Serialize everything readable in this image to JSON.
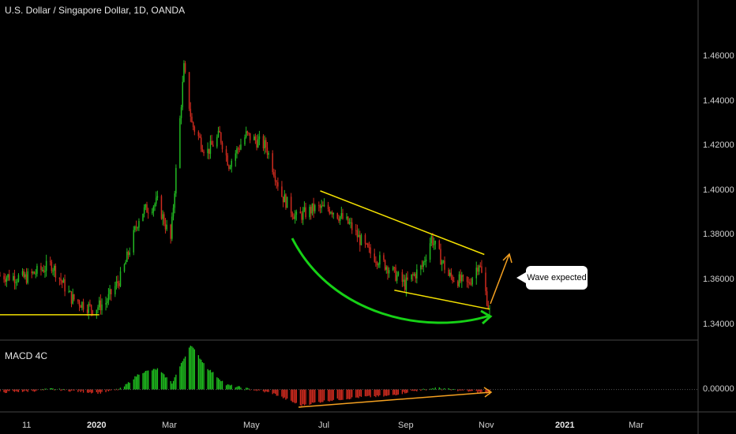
{
  "header": {
    "title": "U.S. Dollar / Singapore Dollar, 1D, OANDA"
  },
  "indicator": {
    "label": "MACD 4C"
  },
  "annotation": {
    "text": "Wave expected"
  },
  "colors": {
    "up": "#22b822",
    "down": "#cc2a1e",
    "trendline": "#f3e000",
    "arc": "#16d116",
    "arrow": "#f4a020",
    "macd_up": "#1fbf1f",
    "macd_down": "#d22b1f"
  },
  "chart_data": [
    {
      "type": "candlestick",
      "title": "U.S. Dollar / Singapore Dollar, 1D, OANDA",
      "x_ticks": [
        "11",
        "2020",
        "Mar",
        "May",
        "Jul",
        "Sep",
        "Nov",
        "2021",
        "Mar"
      ],
      "y_ticks": [
        "1.34000",
        "1.36000",
        "1.38000",
        "1.40000",
        "1.42000",
        "1.44000",
        "1.46000"
      ],
      "ylim": [
        1.3335,
        1.4855
      ],
      "grid": false,
      "close_path": [
        [
          "2019-11-01",
          1.362
        ],
        [
          "2019-11-20",
          1.361
        ],
        [
          "2019-12-10",
          1.367
        ],
        [
          "2019-12-25",
          1.352
        ],
        [
          "2020-01-10",
          1.347
        ],
        [
          "2020-01-20",
          1.35
        ],
        [
          "2020-02-01",
          1.362
        ],
        [
          "2020-02-15",
          1.39
        ],
        [
          "2020-02-28",
          1.395
        ],
        [
          "2020-03-09",
          1.378
        ],
        [
          "2020-03-19",
          1.455
        ],
        [
          "2020-03-25",
          1.43
        ],
        [
          "2020-04-05",
          1.417
        ],
        [
          "2020-04-15",
          1.425
        ],
        [
          "2020-04-22",
          1.412
        ],
        [
          "2020-05-05",
          1.425
        ],
        [
          "2020-05-20",
          1.42
        ],
        [
          "2020-06-01",
          1.398
        ],
        [
          "2020-06-12",
          1.388
        ],
        [
          "2020-06-25",
          1.392
        ],
        [
          "2020-07-08",
          1.392
        ],
        [
          "2020-07-22",
          1.385
        ],
        [
          "2020-08-05",
          1.373
        ],
        [
          "2020-08-20",
          1.366
        ],
        [
          "2020-09-02",
          1.358
        ],
        [
          "2020-09-15",
          1.366
        ],
        [
          "2020-09-22",
          1.379
        ],
        [
          "2020-10-05",
          1.362
        ],
        [
          "2020-10-20",
          1.358
        ],
        [
          "2020-10-28",
          1.368
        ],
        [
          "2020-11-05",
          1.346
        ]
      ],
      "drawings": [
        {
          "kind": "support-line",
          "from": [
            "2019-11-01",
            1.3445
          ],
          "to": [
            "2020-01-15",
            1.3445
          ]
        },
        {
          "kind": "upper-trendline",
          "from": [
            "2020-06-30",
            1.4
          ],
          "to": [
            "2020-11-01",
            1.3715
          ]
        },
        {
          "kind": "lower-trendline",
          "from": [
            "2020-08-25",
            1.3555
          ],
          "to": [
            "2020-11-05",
            1.347
          ]
        }
      ]
    },
    {
      "type": "histogram",
      "title": "MACD 4C",
      "y_ticks": [
        "0.00000"
      ],
      "ylim": [
        -0.012,
        0.026
      ],
      "profile": [
        [
          "2019-11-01",
          -0.0015
        ],
        [
          "2019-11-25",
          -0.0008
        ],
        [
          "2019-12-10",
          0.0003
        ],
        [
          "2019-12-30",
          -0.001
        ],
        [
          "2020-01-15",
          -0.0018
        ],
        [
          "2020-02-01",
          0.0005
        ],
        [
          "2020-02-15",
          0.009
        ],
        [
          "2020-02-28",
          0.011
        ],
        [
          "2020-03-10",
          0.0035
        ],
        [
          "2020-03-24",
          0.024
        ],
        [
          "2020-04-05",
          0.012
        ],
        [
          "2020-04-20",
          0.0025
        ],
        [
          "2020-05-05",
          0.0005
        ],
        [
          "2020-05-25",
          -0.002
        ],
        [
          "2020-06-15",
          -0.0085
        ],
        [
          "2020-07-05",
          -0.006
        ],
        [
          "2020-08-01",
          -0.004
        ],
        [
          "2020-08-20",
          -0.0035
        ],
        [
          "2020-09-05",
          -0.0012
        ],
        [
          "2020-09-25",
          0.0008
        ],
        [
          "2020-10-15",
          -0.0005
        ],
        [
          "2020-11-05",
          -0.002
        ]
      ]
    }
  ]
}
